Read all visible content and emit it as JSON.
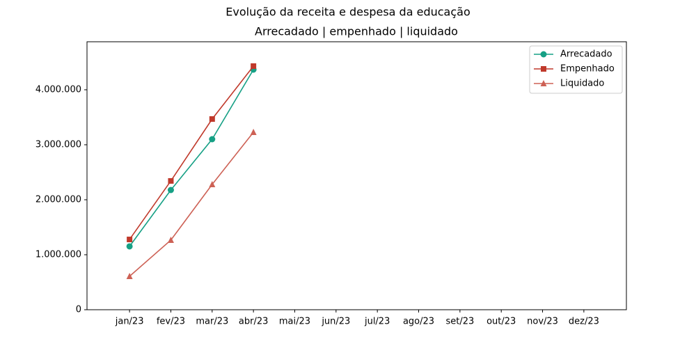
{
  "chart_data": {
    "type": "line",
    "title": "Evolução da receita e despesa da educação",
    "subtitle": "Arrecadado | empenhado | liquidado",
    "categories": [
      "jan/23",
      "fev/23",
      "mar/23",
      "abr/23",
      "mai/23",
      "jun/23",
      "jul/23",
      "ago/23",
      "set/23",
      "out/23",
      "nov/23",
      "dez/23"
    ],
    "series": [
      {
        "name": "Arrecadado",
        "color": "#16a085",
        "marker": "circle",
        "values": [
          1152000,
          2177000,
          3101000,
          4367000,
          null,
          null,
          null,
          null,
          null,
          null,
          null,
          null
        ]
      },
      {
        "name": "Empenhado",
        "color": "#c0392b",
        "marker": "square",
        "values": [
          1278000,
          2342000,
          3468000,
          4430000,
          null,
          null,
          null,
          null,
          null,
          null,
          null,
          null
        ]
      },
      {
        "name": "Liquidado",
        "color": "#cd6155",
        "marker": "triangle",
        "values": [
          608000,
          1266000,
          2278000,
          3228000,
          null,
          null,
          null,
          null,
          null,
          null,
          null,
          null
        ]
      }
    ],
    "ylim": [
      0,
      4873000
    ],
    "yticks": [
      0,
      {
        "value": 1000000,
        "label": "1.000.000"
      },
      {
        "value": 2000000,
        "label": "2.000.000"
      },
      {
        "value": 3000000,
        "label": "3.000.000"
      },
      {
        "value": 4000000,
        "label": "4.000.000"
      }
    ],
    "grid": false,
    "legend": "upper right"
  }
}
